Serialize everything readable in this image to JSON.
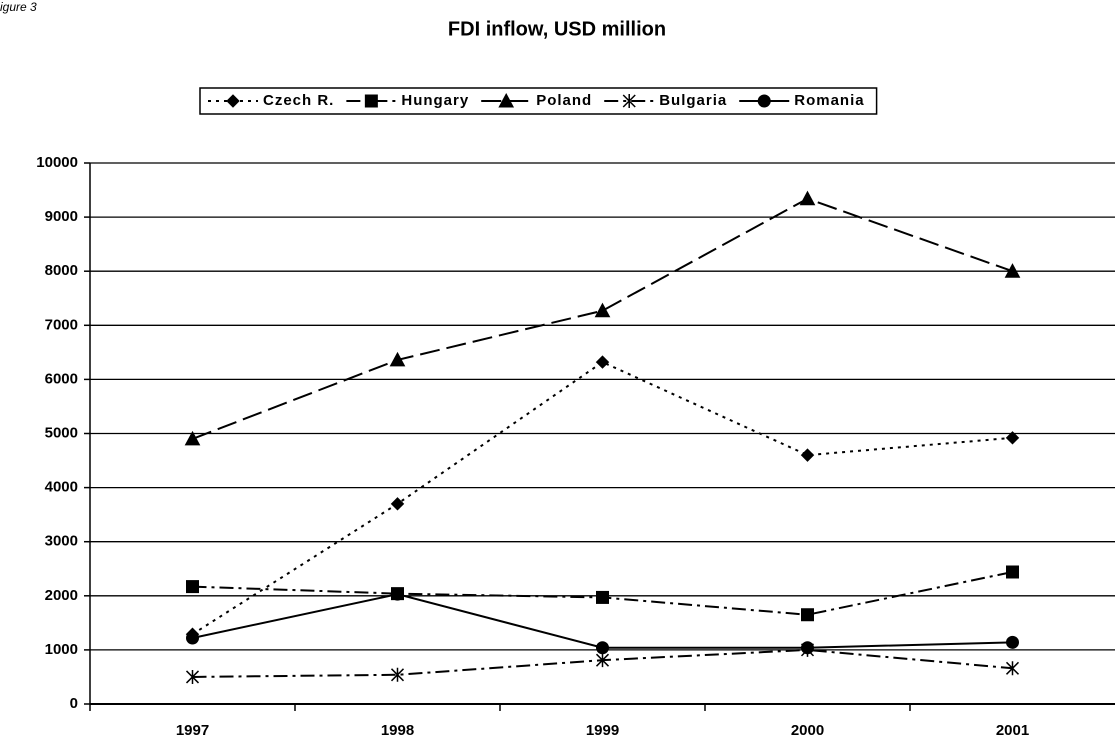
{
  "figure_label": "igure 3",
  "chart_data": {
    "type": "line",
    "title": "FDI inflow, USD million",
    "categories": [
      "1997",
      "1998",
      "1999",
      "2000",
      "2001"
    ],
    "series": [
      {
        "name": "Czech R.",
        "color": "#000000",
        "dash": "3,5",
        "marker": "diamond",
        "values": [
          1290,
          3700,
          6320,
          4600,
          4920
        ]
      },
      {
        "name": "Hungary",
        "color": "#000000",
        "dash": "14,5,3,5",
        "marker": "square",
        "values": [
          2170,
          2040,
          1970,
          1650,
          2440
        ]
      },
      {
        "name": "Poland",
        "color": "#000000",
        "dash": "20,7",
        "marker": "triangle",
        "values": [
          4900,
          6360,
          7270,
          9340,
          8000
        ]
      },
      {
        "name": "Bulgaria",
        "color": "#000000",
        "dash": "14,5,3,5",
        "marker": "star",
        "values": [
          500,
          540,
          810,
          1000,
          660
        ]
      },
      {
        "name": "Romania",
        "color": "#000000",
        "dash": "none",
        "marker": "circle",
        "values": [
          1220,
          2030,
          1040,
          1040,
          1140
        ]
      }
    ],
    "ylim": [
      0,
      10000
    ],
    "yticks": [
      0,
      1000,
      2000,
      3000,
      4000,
      5000,
      6000,
      7000,
      8000,
      9000,
      10000
    ],
    "grid": true,
    "legend": "top"
  }
}
